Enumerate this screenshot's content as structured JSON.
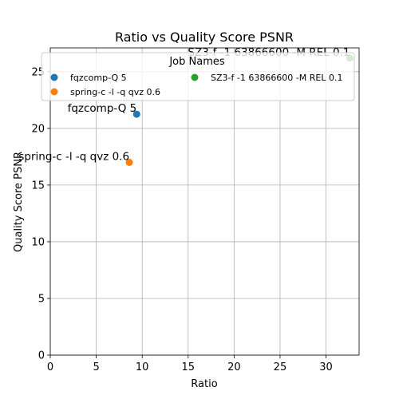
{
  "chart_data": {
    "type": "scatter",
    "title": "Ratio vs Quality Score PSNR",
    "xlabel": "Ratio",
    "ylabel": "Quality Score PSNR",
    "xlim": [
      0,
      33.6
    ],
    "ylim": [
      0,
      27.1
    ],
    "xticks": [
      0,
      5,
      10,
      15,
      20,
      25,
      30
    ],
    "yticks": [
      0,
      5,
      10,
      15,
      20,
      25
    ],
    "grid": true,
    "legend": {
      "title": "Job Names",
      "placement": "top",
      "columns": 2
    },
    "series": [
      {
        "name": "fqzcomp-Q 5",
        "color": "#1f77b4",
        "x": [
          9.4
        ],
        "y": [
          21.25
        ],
        "label": "fqzcomp-Q 5"
      },
      {
        "name": "spring-c -l -q qvz 0.6",
        "color": "#ff7f0e",
        "x": [
          8.6
        ],
        "y": [
          17.0
        ],
        "label": "spring-c -l -q qvz 0.6"
      },
      {
        "name": "SZ3-f -1 63866600 -M REL 0.1",
        "color": "#2ca02c",
        "x": [
          32.6
        ],
        "y": [
          26.2
        ],
        "label": "SZ3-f -1 63866600 -M REL 0.1"
      }
    ]
  }
}
